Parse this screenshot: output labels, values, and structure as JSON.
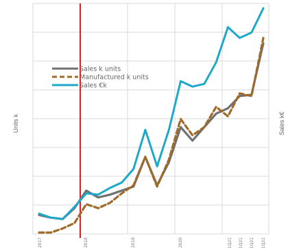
{
  "chart_data": {
    "type": "line",
    "title": "",
    "ylabel_left": "Units k",
    "ylabel_right": "Sales k€",
    "grid": true,
    "legend_position": "upper-left inside plot",
    "x_tick_labels": [
      "2017",
      "2018",
      "2019",
      "2020",
      "1Q21",
      "1Q21",
      "1Q21",
      "1Q21"
    ],
    "marker_line": {
      "color": "#e02020",
      "after_index": 3
    },
    "series": [
      {
        "name": "Sales k units",
        "color": "#707070",
        "style": "solid",
        "values": [
          0.65,
          0.55,
          0.5,
          0.9,
          1.55,
          1.3,
          1.4,
          1.55,
          1.7,
          2.8,
          1.75,
          2.6,
          3.9,
          3.4,
          3.9,
          4.4,
          4.6,
          5.05,
          5.1,
          7.0
        ]
      },
      {
        "name": "Manufactured k units",
        "color": "#a06a28",
        "style": "dashed",
        "values": [
          0.0,
          0.0,
          0.15,
          0.35,
          1.05,
          0.9,
          1.1,
          1.45,
          1.75,
          2.8,
          1.7,
          2.7,
          4.2,
          3.6,
          3.9,
          4.65,
          4.3,
          5.15,
          5.05,
          7.2
        ]
      },
      {
        "name": "Sales €k",
        "color": "#1ea8c8",
        "style": "solid",
        "values": [
          0.7,
          0.55,
          0.5,
          0.95,
          1.45,
          1.4,
          1.65,
          1.85,
          2.35,
          3.8,
          2.45,
          3.8,
          5.6,
          5.4,
          5.5,
          6.3,
          7.6,
          7.2,
          7.4,
          8.3
        ]
      }
    ],
    "ylim": [
      0,
      8.3
    ]
  }
}
